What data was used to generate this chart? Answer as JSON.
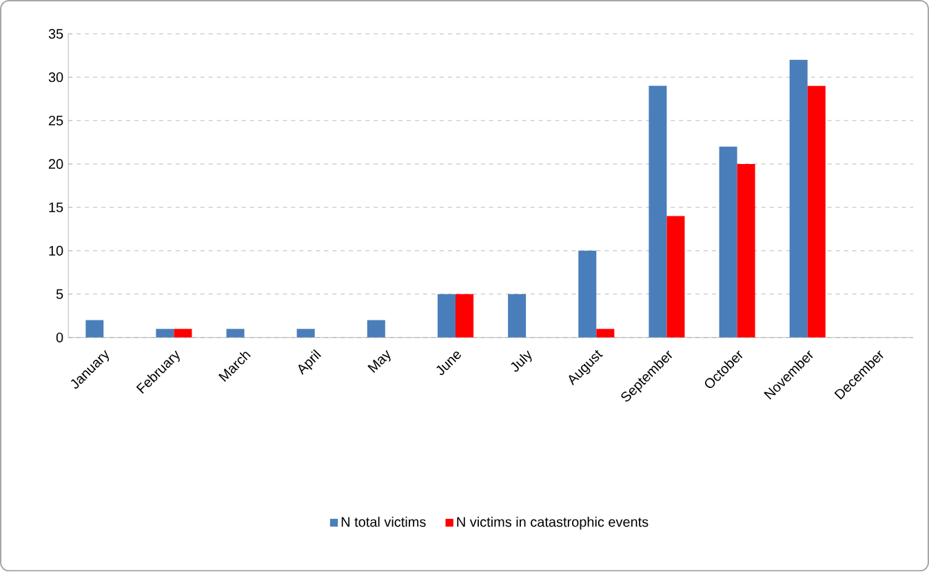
{
  "chart_data": {
    "type": "bar",
    "categories": [
      "January",
      "February",
      "March",
      "April",
      "May",
      "June",
      "July",
      "August",
      "September",
      "October",
      "November",
      "December"
    ],
    "series": [
      {
        "name": "N total victims",
        "color": "#4a7ebb",
        "values": [
          2,
          1,
          1,
          1,
          2,
          5,
          5,
          10,
          29,
          22,
          32,
          0
        ]
      },
      {
        "name": "N victims in catastrophic events",
        "color": "#ff0000",
        "values": [
          0,
          1,
          0,
          0,
          0,
          5,
          0,
          1,
          14,
          20,
          29,
          0
        ]
      }
    ],
    "ylim": [
      0,
      35
    ],
    "yticks": [
      0,
      5,
      10,
      15,
      20,
      25,
      30,
      35
    ],
    "grid": "y",
    "legend": "bottom"
  }
}
